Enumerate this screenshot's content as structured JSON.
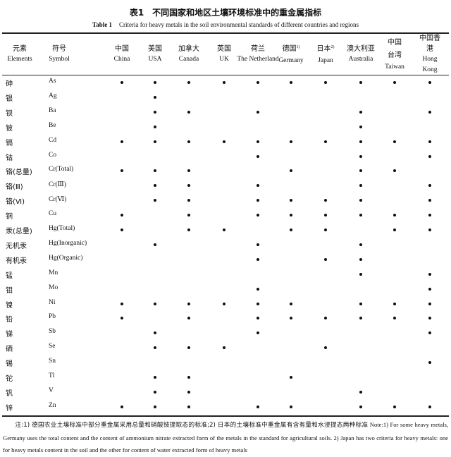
{
  "title_cn": "表1　不同国家和地区土壤环境标准中的重金属指标",
  "title_en_label": "Table 1",
  "title_en": "Criteria for heavy metals in the soil environmental standards of different countries and regions",
  "columns": [
    {
      "cn": "元素",
      "en": "Elements"
    },
    {
      "cn": "符号",
      "en": "Symbol"
    },
    {
      "cn": "中国",
      "en": "China"
    },
    {
      "cn": "美国",
      "en": "USA"
    },
    {
      "cn": "加拿大",
      "en": "Canada"
    },
    {
      "cn": "英国",
      "en": "UK"
    },
    {
      "cn": "荷兰",
      "en": "The Netherland"
    },
    {
      "cn": "德国",
      "sup": "1)",
      "en": "Germany"
    },
    {
      "cn": "日本",
      "sup": "2)",
      "en": "Japan"
    },
    {
      "cn": "澳大利亚",
      "en": "Australia"
    },
    {
      "cn": "中国台湾",
      "en": "Taiwan"
    },
    {
      "cn": "中国香港",
      "en": "Hong Kong"
    }
  ],
  "rows": [
    {
      "element": "砷",
      "symbol": "As",
      "marks": [
        1,
        1,
        1,
        1,
        1,
        1,
        1,
        1,
        1,
        1
      ]
    },
    {
      "element": "银",
      "symbol": "Ag",
      "marks": [
        0,
        1,
        0,
        0,
        0,
        0,
        0,
        0,
        0,
        0
      ]
    },
    {
      "element": "钡",
      "symbol": "Ba",
      "marks": [
        0,
        1,
        1,
        0,
        1,
        0,
        0,
        1,
        0,
        1
      ]
    },
    {
      "element": "铍",
      "symbol": "Be",
      "marks": [
        0,
        1,
        0,
        0,
        0,
        0,
        0,
        1,
        0,
        0
      ]
    },
    {
      "element": "镉",
      "symbol": "Cd",
      "marks": [
        1,
        1,
        1,
        1,
        1,
        1,
        1,
        1,
        1,
        1
      ]
    },
    {
      "element": "钴",
      "symbol": "Co",
      "marks": [
        0,
        0,
        0,
        0,
        1,
        0,
        0,
        1,
        0,
        1
      ]
    },
    {
      "element": "铬(总量)",
      "symbol": "Cr(Total)",
      "marks": [
        1,
        1,
        1,
        0,
        0,
        1,
        0,
        1,
        1,
        0
      ]
    },
    {
      "element": "铬(Ⅲ)",
      "symbol": "Cr(Ⅲ)",
      "marks": [
        0,
        1,
        1,
        0,
        1,
        0,
        0,
        1,
        0,
        1
      ]
    },
    {
      "element": "铬(Ⅵ)",
      "symbol": "Cr(Ⅵ)",
      "marks": [
        0,
        1,
        1,
        0,
        1,
        1,
        1,
        1,
        0,
        1
      ]
    },
    {
      "element": "铜",
      "symbol": "Cu",
      "marks": [
        1,
        0,
        1,
        0,
        1,
        1,
        1,
        1,
        1,
        1
      ]
    },
    {
      "element": "汞(总量)",
      "symbol": "Hg(Total)",
      "marks": [
        1,
        0,
        1,
        1,
        0,
        1,
        1,
        0,
        1,
        1
      ]
    },
    {
      "element": "无机汞",
      "symbol": "Hg(Inorganic)",
      "marks": [
        0,
        1,
        0,
        0,
        1,
        0,
        0,
        1,
        0,
        0
      ]
    },
    {
      "element": "有机汞",
      "symbol": "Hg(Organic)",
      "marks": [
        0,
        0,
        0,
        0,
        1,
        0,
        1,
        1,
        0,
        0
      ]
    },
    {
      "element": "锰",
      "symbol": "Mn",
      "marks": [
        0,
        0,
        0,
        0,
        0,
        0,
        0,
        1,
        0,
        1
      ]
    },
    {
      "element": "钼",
      "symbol": "Mo",
      "marks": [
        0,
        0,
        0,
        0,
        1,
        0,
        0,
        0,
        0,
        1
      ]
    },
    {
      "element": "镍",
      "symbol": "Ni",
      "marks": [
        1,
        1,
        1,
        1,
        1,
        1,
        0,
        1,
        1,
        1
      ]
    },
    {
      "element": "铅",
      "symbol": "Pb",
      "marks": [
        1,
        0,
        1,
        0,
        1,
        1,
        1,
        1,
        1,
        1
      ]
    },
    {
      "element": "锑",
      "symbol": "Sb",
      "marks": [
        0,
        1,
        0,
        0,
        1,
        0,
        0,
        0,
        0,
        1
      ]
    },
    {
      "element": "硒",
      "symbol": "Se",
      "marks": [
        0,
        1,
        1,
        1,
        0,
        0,
        1,
        0,
        0,
        0
      ]
    },
    {
      "element": "锡",
      "symbol": "Sn",
      "marks": [
        0,
        0,
        0,
        0,
        0,
        0,
        0,
        0,
        0,
        1
      ]
    },
    {
      "element": "铊",
      "symbol": "Tl",
      "marks": [
        0,
        1,
        1,
        0,
        0,
        1,
        0,
        0,
        0,
        0
      ]
    },
    {
      "element": "钒",
      "symbol": "V",
      "marks": [
        0,
        1,
        1,
        0,
        0,
        0,
        0,
        1,
        0,
        0
      ]
    },
    {
      "element": "锌",
      "symbol": "Zn",
      "marks": [
        1,
        1,
        1,
        0,
        1,
        1,
        0,
        1,
        1,
        1
      ]
    }
  ],
  "note_cn": "注:1) 德国农业土壤标准中部分重金属采用总量和硝酸铵提取态的标准;2) 日本的土壤标准中重金属有含有量和水浸提态两种标准",
  "note_en": "Note:1) For some heavy metals, Germany uses the total content and the content of ammonium nitrate extracted form of the metals in the standard for agricultural soils. 2) Japan has two criteria for heavy metals: one for heavy metals content in the soil and the other for content of water extracted form of heavy metals"
}
